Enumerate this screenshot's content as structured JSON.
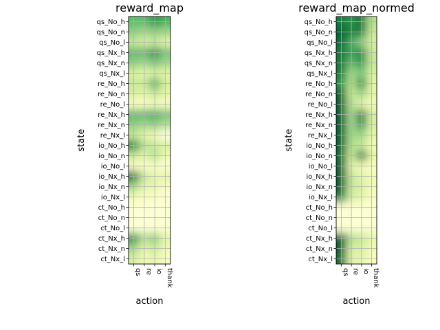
{
  "chart_data": [
    {
      "type": "heatmap",
      "title": "reward_map",
      "xlabel": "action",
      "ylabel": "state",
      "x_categories": [
        "qs",
        "re",
        "io",
        "thank"
      ],
      "y_categories": [
        "qs_No_h",
        "qs_No_n",
        "qs_No_l",
        "qs_Nx_h",
        "qs_Nx_n",
        "qs_Nx_l",
        "re_No_h",
        "re_No_n",
        "re_No_l",
        "re_Nx_h",
        "re_Nx_n",
        "re_Nx_l",
        "io_No_h",
        "io_No_n",
        "io_No_l",
        "io_Nx_h",
        "io_Nx_n",
        "io_Nx_l",
        "ct_No_h",
        "ct_No_n",
        "ct_No_l",
        "ct_Nx_h",
        "ct_Nx_n",
        "ct_Nx_l"
      ],
      "colormap": "YlGn",
      "grid": true,
      "values": [
        [
          0.55,
          0.55,
          0.7,
          0.6
        ],
        [
          0.45,
          0.4,
          0.45,
          0.4
        ],
        [
          0.3,
          0.25,
          0.3,
          0.2
        ],
        [
          0.55,
          0.55,
          0.7,
          0.5
        ],
        [
          0.45,
          0.4,
          0.5,
          0.4
        ],
        [
          0.25,
          0.2,
          0.25,
          0.2
        ],
        [
          0.3,
          0.3,
          0.6,
          0.25
        ],
        [
          0.25,
          0.2,
          0.3,
          0.2
        ],
        [
          0.1,
          0.1,
          0.15,
          0.1
        ],
        [
          0.55,
          0.55,
          0.6,
          0.5
        ],
        [
          0.45,
          0.4,
          0.45,
          0.35
        ],
        [
          0.3,
          0.2,
          0.15,
          0.0
        ],
        [
          0.75,
          0.35,
          0.3,
          0.25
        ],
        [
          0.3,
          0.2,
          0.35,
          0.15
        ],
        [
          0.1,
          0.1,
          0.1,
          0.05
        ],
        [
          0.85,
          0.3,
          0.2,
          0.2
        ],
        [
          0.4,
          0.2,
          0.2,
          0.1
        ],
        [
          0.15,
          0.1,
          0.1,
          0.05
        ],
        [
          0.05,
          0.05,
          0.05,
          0.05
        ],
        [
          0.05,
          0.05,
          0.05,
          0.05
        ],
        [
          0.05,
          0.05,
          0.05,
          0.05
        ],
        [
          0.7,
          0.35,
          0.45,
          0.2
        ],
        [
          0.4,
          0.2,
          0.3,
          0.15
        ],
        [
          0.25,
          0.15,
          0.2,
          0.1
        ]
      ]
    },
    {
      "type": "heatmap",
      "title": "reward_map_normed",
      "xlabel": "action",
      "ylabel": "state",
      "x_categories": [
        "qs",
        "re",
        "io",
        "thank"
      ],
      "y_categories": [
        "qs_No_h",
        "qs_No_n",
        "qs_No_l",
        "qs_Nx_h",
        "qs_Nx_n",
        "qs_Nx_l",
        "re_No_h",
        "re_No_n",
        "re_No_l",
        "re_Nx_h",
        "re_Nx_n",
        "re_Nx_l",
        "io_No_h",
        "io_No_n",
        "io_No_l",
        "io_Nx_h",
        "io_Nx_n",
        "io_Nx_l",
        "ct_No_h",
        "ct_No_n",
        "ct_No_l",
        "ct_Nx_h",
        "ct_Nx_n",
        "ct_Nx_l"
      ],
      "colormap": "YlGn",
      "grid": true,
      "values": [
        [
          0.8,
          0.7,
          0.85,
          0.35
        ],
        [
          0.9,
          0.75,
          0.8,
          0.3
        ],
        [
          0.85,
          0.6,
          0.45,
          0.25
        ],
        [
          0.8,
          0.65,
          0.75,
          0.3
        ],
        [
          0.8,
          0.55,
          0.7,
          0.3
        ],
        [
          0.8,
          0.4,
          0.5,
          0.25
        ],
        [
          0.7,
          0.35,
          0.75,
          0.2
        ],
        [
          0.9,
          0.3,
          0.4,
          0.2
        ],
        [
          0.9,
          0.35,
          0.2,
          0.15
        ],
        [
          0.9,
          0.4,
          0.8,
          0.25
        ],
        [
          0.9,
          0.4,
          0.7,
          0.25
        ],
        [
          0.9,
          0.4,
          0.4,
          0.2
        ],
        [
          0.9,
          0.35,
          0.3,
          0.15
        ],
        [
          0.85,
          0.3,
          0.8,
          0.2
        ],
        [
          0.9,
          0.2,
          0.15,
          0.1
        ],
        [
          0.9,
          0.3,
          0.2,
          0.15
        ],
        [
          0.9,
          0.3,
          0.25,
          0.15
        ],
        [
          0.75,
          0.25,
          0.2,
          0.1
        ],
        [
          0.05,
          0.05,
          0.05,
          0.05
        ],
        [
          0.05,
          0.05,
          0.05,
          0.05
        ],
        [
          0.05,
          0.05,
          0.05,
          0.05
        ],
        [
          0.9,
          0.35,
          0.3,
          0.2
        ],
        [
          0.9,
          0.25,
          0.25,
          0.15
        ],
        [
          0.85,
          0.2,
          0.2,
          0.1
        ]
      ]
    }
  ]
}
